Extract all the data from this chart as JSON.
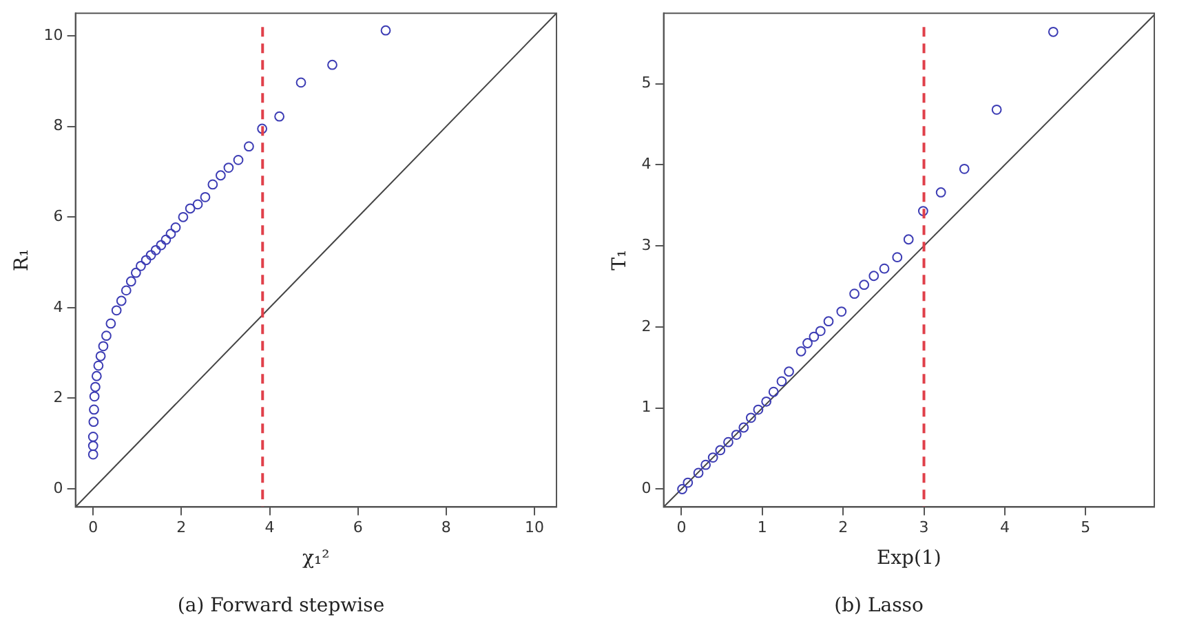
{
  "chart_data": [
    {
      "type": "scatter",
      "title": "(a) Forward stepwise",
      "xlabel": "χ₁²",
      "ylabel": "R₁",
      "xlim": [
        -0.4,
        10.5
      ],
      "ylim": [
        -0.4,
        10.5
      ],
      "xticks": [
        0,
        2,
        4,
        6,
        8,
        10
      ],
      "yticks": [
        0,
        2,
        4,
        6,
        8,
        10
      ],
      "grid": false,
      "legend": false,
      "marker": "circle",
      "series": [
        {
          "type": "scatter",
          "color": "#3c3cb4",
          "x": [
            0.0,
            0.0,
            0.0,
            0.01,
            0.02,
            0.03,
            0.05,
            0.08,
            0.12,
            0.17,
            0.23,
            0.3,
            0.4,
            0.53,
            0.64,
            0.75,
            0.86,
            0.97,
            1.08,
            1.2,
            1.31,
            1.42,
            1.54,
            1.65,
            1.76,
            1.87,
            2.04,
            2.2,
            2.37,
            2.54,
            2.71,
            2.89,
            3.07,
            3.29,
            3.53,
            3.83,
            4.22,
            4.71,
            5.42,
            6.63
          ],
          "values": [
            0.76,
            0.95,
            1.15,
            1.48,
            1.75,
            2.04,
            2.25,
            2.49,
            2.72,
            2.93,
            3.15,
            3.38,
            3.65,
            3.94,
            4.15,
            4.38,
            4.58,
            4.77,
            4.92,
            5.05,
            5.16,
            5.27,
            5.38,
            5.5,
            5.63,
            5.77,
            6.0,
            6.19,
            6.28,
            6.44,
            6.72,
            6.92,
            7.09,
            7.26,
            7.56,
            7.95,
            8.22,
            8.97,
            9.36,
            10.12
          ]
        },
        {
          "type": "line",
          "color": "#444444",
          "marker": "none",
          "x": [
            -0.4,
            10.5
          ],
          "values": [
            -0.4,
            10.5
          ]
        }
      ],
      "ref_lines": [
        {
          "axis": "x",
          "value": 3.84,
          "color": "#e0404a",
          "line_style": "dashed"
        }
      ]
    },
    {
      "type": "scatter",
      "title": "(b) Lasso",
      "xlabel": "Exp(1)",
      "ylabel": "T₁",
      "xlim": [
        -0.22,
        5.85
      ],
      "ylim": [
        -0.22,
        5.87
      ],
      "xticks": [
        0,
        1,
        2,
        3,
        4,
        5
      ],
      "yticks": [
        0,
        1,
        2,
        3,
        4,
        5
      ],
      "grid": false,
      "legend": false,
      "marker": "circle",
      "series": [
        {
          "type": "scatter",
          "color": "#3c3cb4",
          "x": [
            0.01,
            0.08,
            0.21,
            0.3,
            0.39,
            0.48,
            0.58,
            0.68,
            0.77,
            0.86,
            0.95,
            1.05,
            1.14,
            1.24,
            1.33,
            1.48,
            1.56,
            1.64,
            1.72,
            1.82,
            1.98,
            2.14,
            2.26,
            2.38,
            2.51,
            2.67,
            2.81,
            2.99,
            3.21,
            3.5,
            3.9,
            4.6
          ],
          "values": [
            0.0,
            0.08,
            0.2,
            0.3,
            0.39,
            0.48,
            0.58,
            0.67,
            0.76,
            0.88,
            0.98,
            1.08,
            1.2,
            1.33,
            1.45,
            1.7,
            1.8,
            1.88,
            1.95,
            2.07,
            2.19,
            2.41,
            2.52,
            2.63,
            2.72,
            2.86,
            3.08,
            3.43,
            3.66,
            3.95,
            4.68,
            5.64
          ]
        },
        {
          "type": "line",
          "color": "#444444",
          "marker": "none",
          "x": [
            -0.22,
            5.85
          ],
          "values": [
            -0.22,
            5.85
          ]
        }
      ],
      "ref_lines": [
        {
          "axis": "x",
          "value": 3,
          "color": "#e0404a",
          "line_style": "dashed"
        }
      ]
    }
  ]
}
